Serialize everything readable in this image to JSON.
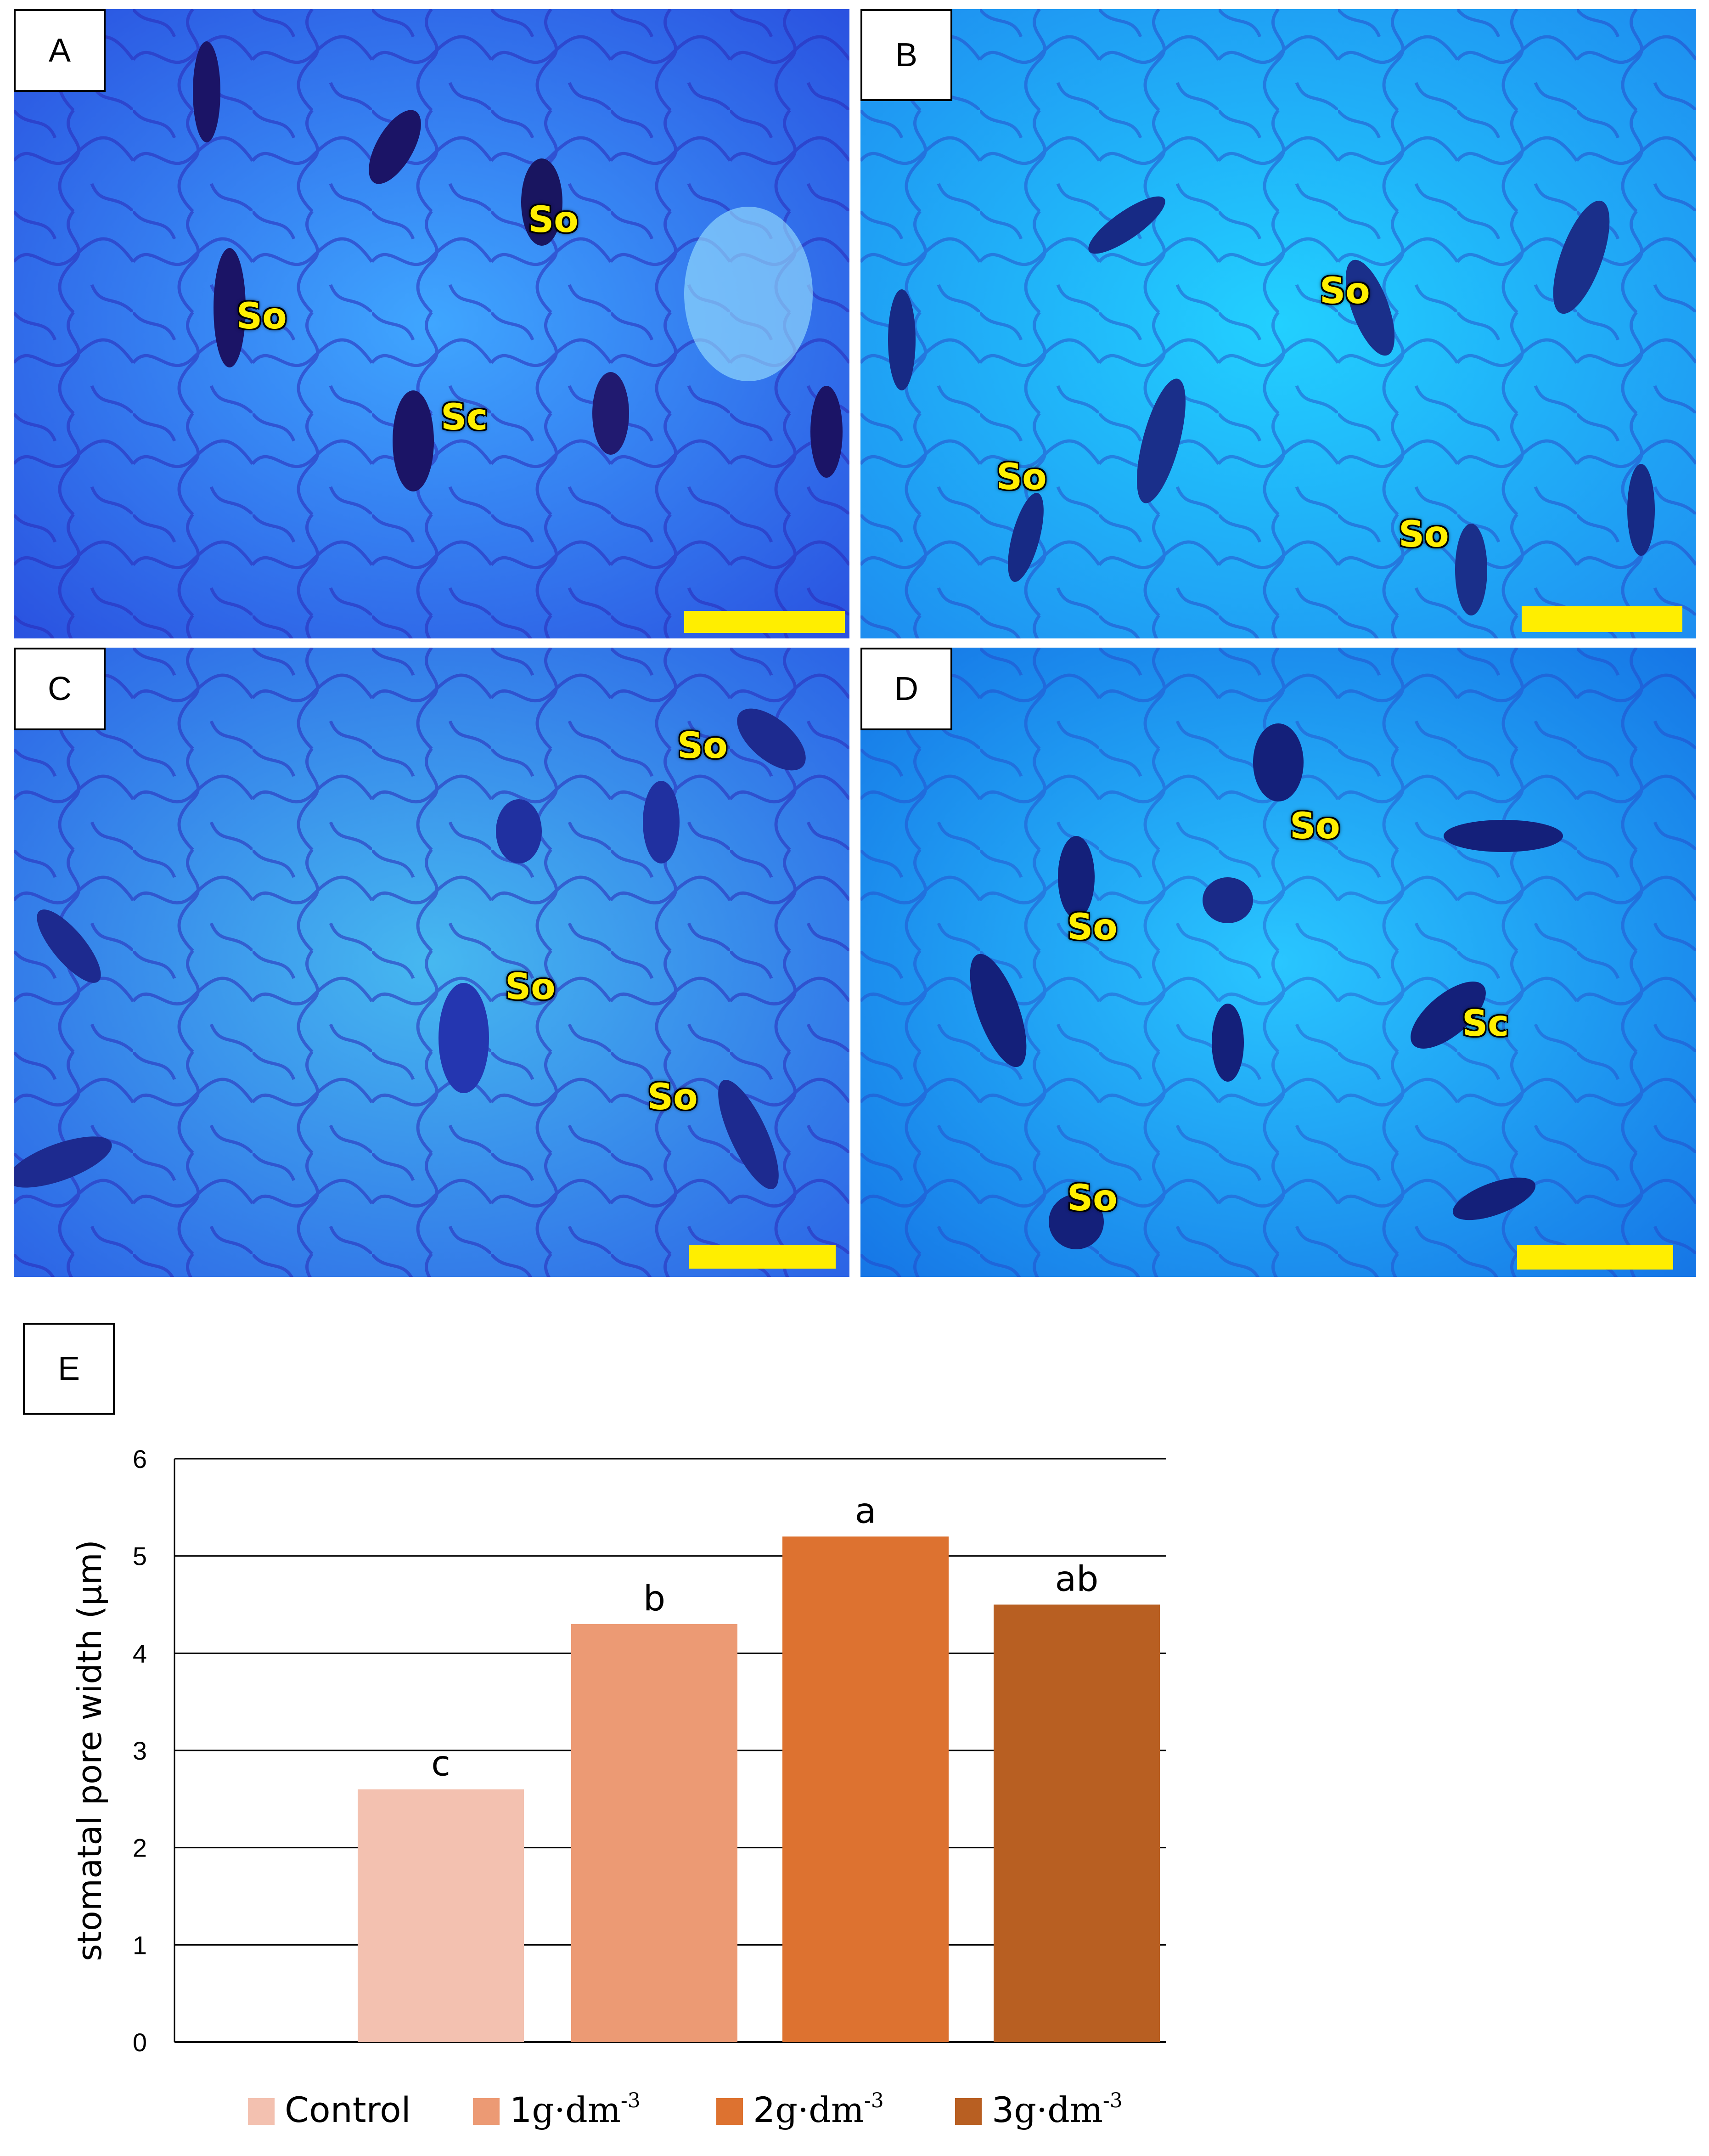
{
  "panels": {
    "A": {
      "label": "A",
      "tags": [
        "So",
        "So",
        "Sc"
      ]
    },
    "B": {
      "label": "B",
      "tags": [
        "So",
        "So",
        "So"
      ]
    },
    "C": {
      "label": "C",
      "tags": [
        "So",
        "So",
        "So"
      ]
    },
    "D": {
      "label": "D",
      "tags": [
        "So",
        "So",
        "Sc",
        "So"
      ]
    },
    "E": {
      "label": "E"
    }
  },
  "colors": {
    "control": "#f3c1b0",
    "g1": "#ec9a74",
    "g2": "#dd7230",
    "g3": "#b85f22",
    "scalebar": "#ffee00"
  },
  "chart_data": {
    "type": "bar",
    "categories": [
      "Control",
      "1g·dm-3",
      "2g·dm-3",
      "3g·dm-3"
    ],
    "values": [
      2.6,
      4.3,
      5.2,
      4.5
    ],
    "significance_letters": [
      "c",
      "b",
      "a",
      "ab"
    ],
    "ylabel": "stomatal pore width (μm)",
    "ylim": [
      0,
      6
    ],
    "yticks": [
      "0",
      "1",
      "2",
      "3",
      "4",
      "5",
      "6"
    ],
    "grid": true,
    "legend": [
      {
        "prefix": "Control",
        "unit": "",
        "exp": ""
      },
      {
        "prefix": "1",
        "unit": "g·dm",
        "exp": "-3"
      },
      {
        "prefix": "2",
        "unit": "g·dm",
        "exp": "-3"
      },
      {
        "prefix": "3",
        "unit": "g·dm",
        "exp": "-3"
      }
    ],
    "legend_position": "bottom"
  }
}
